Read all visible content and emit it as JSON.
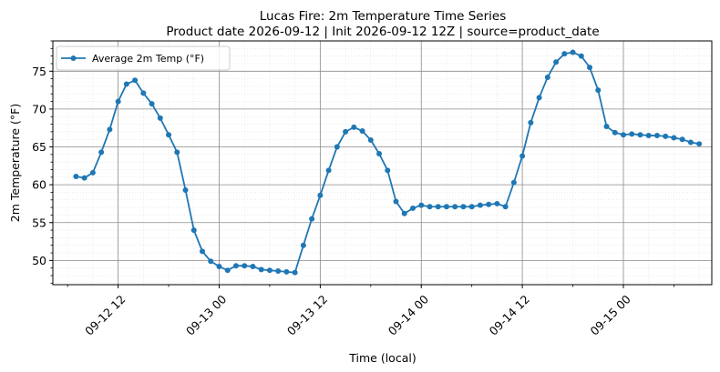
{
  "chart_data": {
    "type": "line",
    "title": "Lucas Fire: 2m Temperature Time Series",
    "subtitle": "Product date 2026-09-12 | Init 2026-09-12 12Z | source=product_date",
    "xlabel": "Time (local)",
    "ylabel": "2m Temperature (°F)",
    "ylim": [
      46.8,
      79
    ],
    "xlim": [
      "2026-09-12 04:15",
      "2026-09-15 10:30"
    ],
    "x_tick_labels": [
      "09-12 12",
      "09-13 00",
      "09-13 12",
      "09-14 00",
      "09-14 12",
      "09-15 00"
    ],
    "y_ticks": [
      50,
      55,
      60,
      65,
      70,
      75
    ],
    "grid": true,
    "legend_position": "top-left",
    "color": "#1f77b4",
    "series": [
      {
        "name": "Average 2m Temp (°F)",
        "points": [
          [
            "2026-09-12 07:00",
            61.1
          ],
          [
            "2026-09-12 08:00",
            60.9
          ],
          [
            "2026-09-12 09:00",
            61.6
          ],
          [
            "2026-09-12 10:00",
            64.3
          ],
          [
            "2026-09-12 11:00",
            67.3
          ],
          [
            "2026-09-12 12:00",
            71.0
          ],
          [
            "2026-09-12 13:00",
            73.3
          ],
          [
            "2026-09-12 14:00",
            73.8
          ],
          [
            "2026-09-12 15:00",
            72.1
          ],
          [
            "2026-09-12 16:00",
            70.7
          ],
          [
            "2026-09-12 17:00",
            68.8
          ],
          [
            "2026-09-12 18:00",
            66.6
          ],
          [
            "2026-09-12 19:00",
            64.3
          ],
          [
            "2026-09-12 20:00",
            59.3
          ],
          [
            "2026-09-12 21:00",
            54.0
          ],
          [
            "2026-09-12 22:00",
            51.2
          ],
          [
            "2026-09-12 23:00",
            49.9
          ],
          [
            "2026-09-13 00:00",
            49.2
          ],
          [
            "2026-09-13 01:00",
            48.7
          ],
          [
            "2026-09-13 02:00",
            49.3
          ],
          [
            "2026-09-13 03:00",
            49.3
          ],
          [
            "2026-09-13 04:00",
            49.2
          ],
          [
            "2026-09-13 05:00",
            48.8
          ],
          [
            "2026-09-13 06:00",
            48.7
          ],
          [
            "2026-09-13 07:00",
            48.6
          ],
          [
            "2026-09-13 08:00",
            48.5
          ],
          [
            "2026-09-13 09:00",
            48.4
          ],
          [
            "2026-09-13 10:00",
            52.0
          ],
          [
            "2026-09-13 11:00",
            55.5
          ],
          [
            "2026-09-13 12:00",
            58.6
          ],
          [
            "2026-09-13 13:00",
            61.9
          ],
          [
            "2026-09-13 14:00",
            65.0
          ],
          [
            "2026-09-13 15:00",
            67.0
          ],
          [
            "2026-09-13 16:00",
            67.6
          ],
          [
            "2026-09-13 17:00",
            67.1
          ],
          [
            "2026-09-13 18:00",
            65.9
          ],
          [
            "2026-09-13 19:00",
            64.1
          ],
          [
            "2026-09-13 20:00",
            61.9
          ],
          [
            "2026-09-13 21:00",
            57.8
          ],
          [
            "2026-09-13 22:00",
            56.2
          ],
          [
            "2026-09-13 23:00",
            56.9
          ],
          [
            "2026-09-14 00:00",
            57.3
          ],
          [
            "2026-09-14 01:00",
            57.1
          ],
          [
            "2026-09-14 02:00",
            57.1
          ],
          [
            "2026-09-14 03:00",
            57.1
          ],
          [
            "2026-09-14 04:00",
            57.1
          ],
          [
            "2026-09-14 05:00",
            57.1
          ],
          [
            "2026-09-14 06:00",
            57.1
          ],
          [
            "2026-09-14 07:00",
            57.3
          ],
          [
            "2026-09-14 08:00",
            57.4
          ],
          [
            "2026-09-14 09:00",
            57.5
          ],
          [
            "2026-09-14 10:00",
            57.1
          ],
          [
            "2026-09-14 11:00",
            60.3
          ],
          [
            "2026-09-14 12:00",
            63.8
          ],
          [
            "2026-09-14 13:00",
            68.2
          ],
          [
            "2026-09-14 14:00",
            71.5
          ],
          [
            "2026-09-14 15:00",
            74.2
          ],
          [
            "2026-09-14 16:00",
            76.2
          ],
          [
            "2026-09-14 17:00",
            77.3
          ],
          [
            "2026-09-14 18:00",
            77.5
          ],
          [
            "2026-09-14 19:00",
            77.0
          ],
          [
            "2026-09-14 20:00",
            75.5
          ],
          [
            "2026-09-14 21:00",
            72.5
          ],
          [
            "2026-09-14 22:00",
            67.7
          ],
          [
            "2026-09-14 23:00",
            66.9
          ],
          [
            "2026-09-15 00:00",
            66.6
          ],
          [
            "2026-09-15 01:00",
            66.7
          ],
          [
            "2026-09-15 02:00",
            66.6
          ],
          [
            "2026-09-15 03:00",
            66.5
          ],
          [
            "2026-09-15 04:00",
            66.5
          ],
          [
            "2026-09-15 05:00",
            66.4
          ],
          [
            "2026-09-15 06:00",
            66.2
          ],
          [
            "2026-09-15 07:00",
            66.0
          ],
          [
            "2026-09-15 08:00",
            65.6
          ],
          [
            "2026-09-15 09:00",
            65.4
          ]
        ]
      }
    ]
  }
}
